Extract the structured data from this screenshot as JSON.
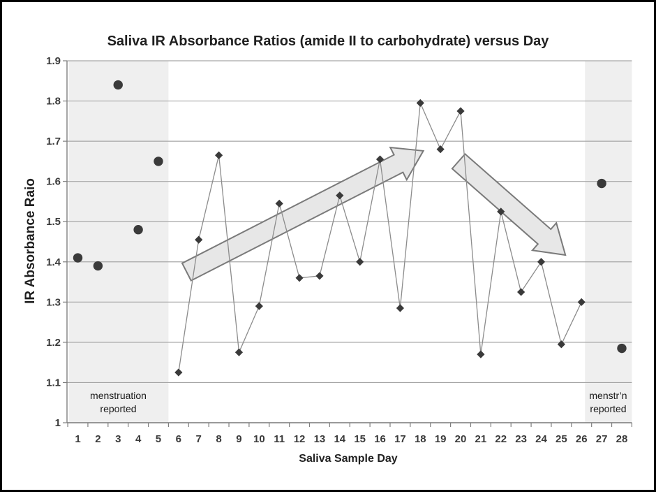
{
  "chart_data": {
    "type": "scatter",
    "title": "Saliva IR Absorbance Ratios (amide II to carbohydrate) versus Day",
    "xlabel": "Saliva Sample Day",
    "ylabel": "IR Absorbance Raio",
    "ylim": [
      1,
      1.9
    ],
    "ytick_labels": [
      "1",
      "1.1",
      "1.2",
      "1.3",
      "1.4",
      "1.5",
      "1.6",
      "1.7",
      "1.8",
      "1.9"
    ],
    "xtick_labels": [
      "1",
      "2",
      "3",
      "4",
      "5",
      "6",
      "7",
      "8",
      "9",
      "10",
      "11",
      "12",
      "13",
      "14",
      "15",
      "16",
      "17",
      "18",
      "19",
      "20",
      "21",
      "22",
      "23",
      "24",
      "25",
      "26",
      "27",
      "28"
    ],
    "grid": "horizontal",
    "legend": "none",
    "series": [
      {
        "name": "menstruation-days-circles",
        "marker": "circle",
        "connected": false,
        "points": [
          {
            "day": 1,
            "value": 1.41
          },
          {
            "day": 2,
            "value": 1.39
          },
          {
            "day": 3,
            "value": 1.84
          },
          {
            "day": 4,
            "value": 1.48
          },
          {
            "day": 5,
            "value": 1.65
          },
          {
            "day": 27,
            "value": 1.595
          },
          {
            "day": 28,
            "value": 1.185
          }
        ]
      },
      {
        "name": "cycle-days-diamonds",
        "marker": "diamond",
        "connected": true,
        "points": [
          {
            "day": 6,
            "value": 1.125
          },
          {
            "day": 7,
            "value": 1.455
          },
          {
            "day": 8,
            "value": 1.665
          },
          {
            "day": 9,
            "value": 1.175
          },
          {
            "day": 10,
            "value": 1.29
          },
          {
            "day": 11,
            "value": 1.545
          },
          {
            "day": 12,
            "value": 1.36
          },
          {
            "day": 13,
            "value": 1.365
          },
          {
            "day": 14,
            "value": 1.565
          },
          {
            "day": 15,
            "value": 1.4
          },
          {
            "day": 16,
            "value": 1.655
          },
          {
            "day": 17,
            "value": 1.285
          },
          {
            "day": 18,
            "value": 1.795
          },
          {
            "day": 19,
            "value": 1.68
          },
          {
            "day": 20,
            "value": 1.775
          },
          {
            "day": 21,
            "value": 1.17
          },
          {
            "day": 22,
            "value": 1.525
          },
          {
            "day": 23,
            "value": 1.325
          },
          {
            "day": 24,
            "value": 1.4
          },
          {
            "day": 25,
            "value": 1.195
          },
          {
            "day": 26,
            "value": 1.3
          }
        ]
      }
    ],
    "shaded_regions": [
      {
        "label_lines": [
          "menstruation",
          "reported"
        ],
        "day_from": 0.55,
        "day_to": 5.5
      },
      {
        "label_lines": [
          "menstr’n",
          "reported"
        ],
        "day_from": 26.17,
        "day_to": 28.5
      }
    ],
    "arrows": [
      {
        "direction": "ascending",
        "from_day": 6.4,
        "from_value": 1.375,
        "to_day": 18.15,
        "to_value": 1.676
      },
      {
        "direction": "descending",
        "from_day": 19.9,
        "from_value": 1.65,
        "to_day": 25.2,
        "to_value": 1.417
      }
    ],
    "colors": {
      "marker": "#3a3a3a",
      "series_line": "#8c8c8c",
      "gridline": "#a6a6a6",
      "axis": "#7f7f7f",
      "band_fill": "#efefef",
      "arrow_fill": "#e7e7e7",
      "arrow_stroke": "#7a7a7a",
      "background": "#ffffff",
      "frame_border": "#000000"
    }
  }
}
